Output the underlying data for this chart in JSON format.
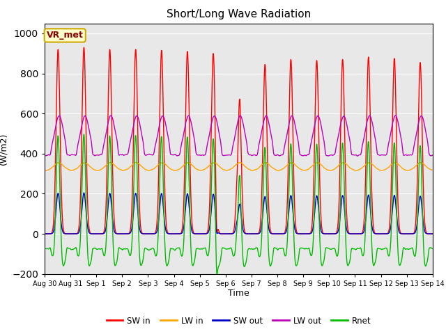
{
  "title": "Short/Long Wave Radiation",
  "xlabel": "Time",
  "ylabel": "(W/m2)",
  "ylim": [
    -200,
    1050
  ],
  "yticks": [
    -200,
    0,
    200,
    400,
    600,
    800,
    1000
  ],
  "station_label": "VR_met",
  "legend": [
    "SW in",
    "LW in",
    "SW out",
    "LW out",
    "Rnet"
  ],
  "colors": {
    "SW in": "#ff0000",
    "LW in": "#ffa500",
    "SW out": "#0000cc",
    "LW out": "#bb00bb",
    "Rnet": "#00bb00"
  },
  "xtick_labels": [
    "Aug 30",
    "Aug 31",
    "Sep 1",
    "Sep 2",
    "Sep 3",
    "Sep 4",
    "Sep 5",
    "Sep 6",
    "Sep 7",
    "Sep 8",
    "Sep 9",
    "Sep 10",
    "Sep 11",
    "Sep 12",
    "Sep 13",
    "Sep 14"
  ],
  "n_days": 15,
  "bg_color": "#e8e8e8",
  "fig_bg": "#ffffff",
  "linewidth": 1.0
}
